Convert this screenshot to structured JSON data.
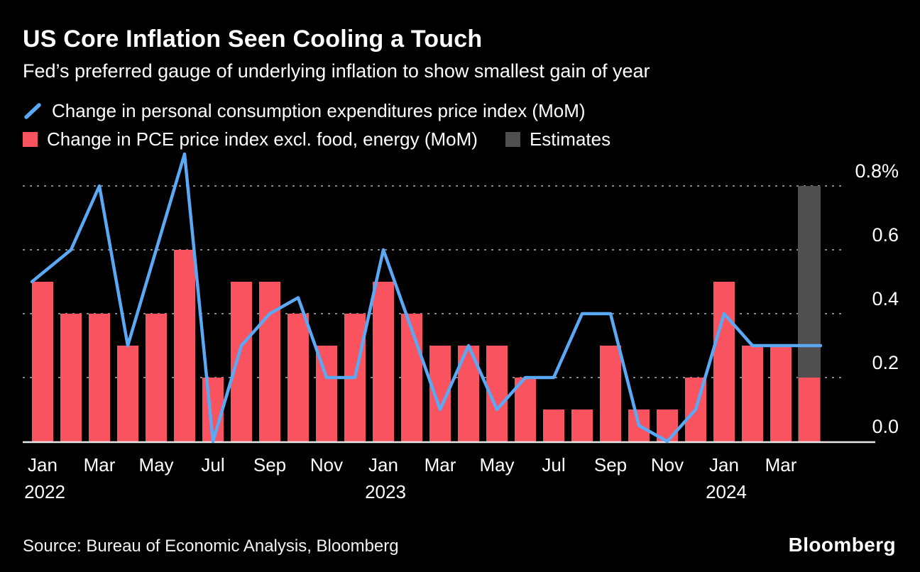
{
  "header": {
    "title": "US Core Inflation Seen Cooling a Touch",
    "subtitle": "Fed’s preferred gauge of underlying inflation to show smallest gain of year"
  },
  "legend": {
    "line_label": "Change in personal consumption expenditures price index (MoM)",
    "bar_label": "Change in PCE price index excl. food, energy (MoM)",
    "estimate_label": "Estimates"
  },
  "footer": {
    "source": "Source: Bureau of Economic Analysis, Bloomberg",
    "brand": "Bloomberg"
  },
  "colors": {
    "background": "#000000",
    "bar": "#F8535E",
    "line": "#5BA8F4",
    "estimate": "#4F4F4F",
    "grid": "#848484",
    "axis": "#E8E8E8",
    "text": "#FFFFFF"
  },
  "chart_data": {
    "type": "bar+line",
    "title": "US Core Inflation Seen Cooling a Touch",
    "subtitle": "Fed’s preferred gauge of underlying inflation to show smallest gain of year",
    "grid": "horizontal-dashed",
    "legend_position": "top-left",
    "ylim": [
      0,
      0.95
    ],
    "months": [
      "Jan 2022",
      "Feb 2022",
      "Mar 2022",
      "Apr 2022",
      "May 2022",
      "Jun 2022",
      "Jul 2022",
      "Aug 2022",
      "Sep 2022",
      "Oct 2022",
      "Nov 2022",
      "Dec 2022",
      "Jan 2023",
      "Feb 2023",
      "Mar 2023",
      "Apr 2023",
      "May 2023",
      "Jun 2023",
      "Jul 2023",
      "Aug 2023",
      "Sep 2023",
      "Oct 2023",
      "Nov 2023",
      "Dec 2023",
      "Jan 2024",
      "Feb 2024",
      "Mar 2024",
      "Apr 2024"
    ],
    "series": [
      {
        "name": "Change in personal consumption expenditures price index (MoM)",
        "type": "line",
        "values": [
          0.5,
          0.6,
          0.8,
          0.3,
          0.6,
          0.9,
          0.0,
          0.3,
          0.4,
          0.45,
          0.2,
          0.2,
          0.6,
          0.35,
          0.1,
          0.3,
          0.1,
          0.2,
          0.2,
          0.4,
          0.4,
          0.05,
          0.0,
          0.1,
          0.4,
          0.3,
          0.3,
          0.3
        ]
      },
      {
        "name": "Change in PCE price index excl. food, energy (MoM)",
        "type": "bar",
        "values": [
          0.5,
          0.4,
          0.4,
          0.3,
          0.4,
          0.6,
          0.2,
          0.5,
          0.5,
          0.4,
          0.3,
          0.4,
          0.5,
          0.4,
          0.3,
          0.3,
          0.3,
          0.2,
          0.1,
          0.1,
          0.3,
          0.1,
          0.1,
          0.2,
          0.5,
          0.3,
          0.3,
          0.2
        ]
      }
    ],
    "estimate": {
      "month": "Apr 2024",
      "index": 27,
      "column_top": 0.8,
      "core_pce_estimate": 0.2,
      "headline_pce_estimate": 0.3
    },
    "y_ticks": [
      {
        "value": 0.0,
        "label": "0.0"
      },
      {
        "value": 0.2,
        "label": "0.2"
      },
      {
        "value": 0.4,
        "label": "0.4"
      },
      {
        "value": 0.6,
        "label": "0.6"
      },
      {
        "value": 0.8,
        "label": "0.8%"
      }
    ],
    "x_ticks": [
      {
        "index": 0,
        "label": "Jan",
        "year": "2022"
      },
      {
        "index": 2,
        "label": "Mar"
      },
      {
        "index": 4,
        "label": "May"
      },
      {
        "index": 6,
        "label": "Jul"
      },
      {
        "index": 8,
        "label": "Sep"
      },
      {
        "index": 10,
        "label": "Nov"
      },
      {
        "index": 12,
        "label": "Jan",
        "year": "2023"
      },
      {
        "index": 14,
        "label": "Mar"
      },
      {
        "index": 16,
        "label": "May"
      },
      {
        "index": 18,
        "label": "Jul"
      },
      {
        "index": 20,
        "label": "Sep"
      },
      {
        "index": 22,
        "label": "Nov"
      },
      {
        "index": 24,
        "label": "Jan",
        "year": "2024"
      },
      {
        "index": 26,
        "label": "Mar"
      }
    ]
  }
}
